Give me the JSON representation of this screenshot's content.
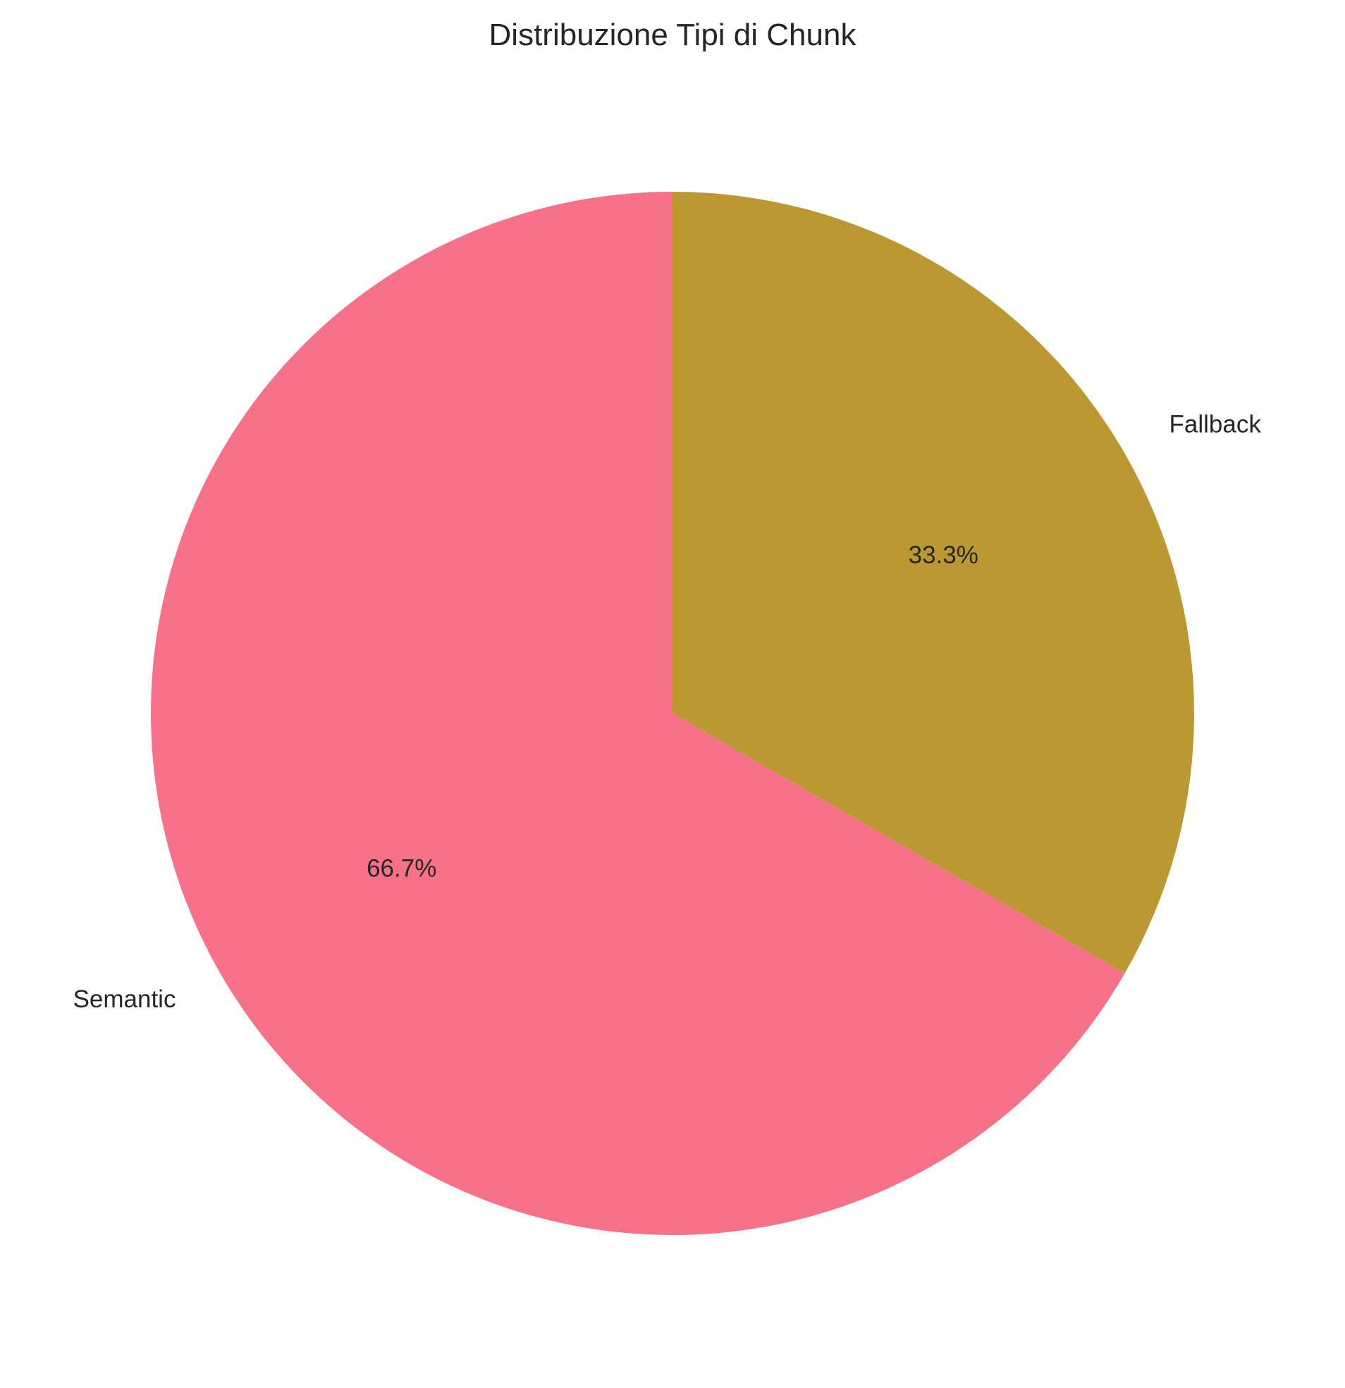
{
  "chart_data": {
    "type": "pie",
    "title": "Distribuzione Tipi di Chunk",
    "categories": [
      "Semantic",
      "Fallback"
    ],
    "values": [
      66.7,
      33.3
    ],
    "value_labels": [
      "66.7%",
      "33.3%"
    ],
    "colors": [
      "#f77189",
      "#bb9832"
    ],
    "start_angle_deg": 90,
    "direction": "counterclockwise",
    "legend": "none"
  }
}
